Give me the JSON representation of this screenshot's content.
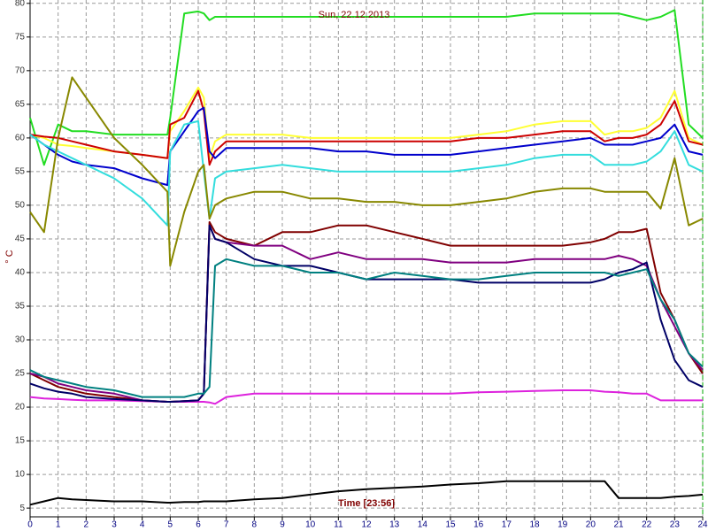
{
  "chart_data": {
    "type": "line",
    "title": "Sun, 22.12.2013",
    "ylabel": "° C",
    "annotation": "Time [23:56]",
    "grid": true,
    "xlim": [
      0,
      24
    ],
    "ylim": [
      3.7,
      80.5
    ],
    "xticks": [
      0,
      1,
      2,
      3,
      4,
      5,
      6,
      7,
      8,
      9,
      10,
      11,
      12,
      13,
      14,
      15,
      16,
      17,
      18,
      19,
      20,
      21,
      22,
      23,
      24
    ],
    "yticks": [
      5,
      10,
      15,
      20,
      25,
      30,
      35,
      40,
      45,
      50,
      55,
      60,
      65,
      70,
      75,
      80
    ],
    "x": [
      0,
      0.5,
      1,
      1.5,
      2,
      3,
      4,
      4.9,
      5,
      5.5,
      6,
      6.2,
      6.4,
      6.6,
      7,
      8,
      9,
      10,
      11,
      12,
      13,
      14,
      15,
      16,
      17,
      18,
      19,
      20,
      20.5,
      21,
      21.5,
      22,
      22.5,
      23,
      23.5,
      24
    ],
    "series": [
      {
        "color": "#22dd22",
        "values": [
          63,
          56,
          62,
          61,
          61,
          60.5,
          60.5,
          60.5,
          63,
          78.5,
          78.8,
          78.5,
          77.5,
          78,
          78,
          78,
          78,
          78,
          78,
          78,
          78,
          78,
          78,
          78,
          78,
          78.5,
          78.5,
          78.5,
          78.5,
          78.5,
          78,
          77.5,
          78,
          79,
          62,
          60
        ]
      },
      {
        "color": "#ffff33",
        "values": [
          60.5,
          60,
          59,
          58.8,
          58.5,
          58,
          57.5,
          57,
          61,
          64,
          67.5,
          66,
          57,
          59.5,
          60.5,
          60.5,
          60.5,
          60,
          60,
          60,
          60,
          60,
          60,
          60.5,
          61,
          62,
          62.5,
          62.5,
          60.5,
          61,
          61,
          61.5,
          63,
          67,
          60,
          59
        ]
      },
      {
        "color": "#cc0000",
        "values": [
          60.5,
          60.2,
          60,
          59.5,
          59,
          58,
          57.5,
          57,
          62,
          63,
          67,
          64,
          56,
          58,
          59.5,
          59.5,
          59.5,
          59.5,
          59.5,
          59.5,
          59.5,
          59.5,
          59.5,
          60,
          60,
          60.5,
          61,
          61,
          59.5,
          60,
          60,
          60.5,
          62,
          65.5,
          59.5,
          59
        ]
      },
      {
        "color": "#0000cc",
        "values": [
          60.5,
          59,
          57.5,
          56.5,
          56,
          55.5,
          54,
          53,
          58,
          61,
          64,
          64.5,
          58,
          57,
          58.5,
          58.5,
          58.5,
          58.5,
          58,
          58,
          57.5,
          57.5,
          57.5,
          58,
          58.5,
          59,
          59.5,
          60,
          59,
          59,
          59,
          59.5,
          60,
          62,
          58,
          57.5
        ]
      },
      {
        "color": "#33dddd",
        "values": [
          60.5,
          59,
          58,
          57,
          56,
          54,
          51,
          47,
          58,
          62,
          62.5,
          55,
          48,
          54,
          55,
          55.5,
          56,
          55.5,
          55,
          55,
          55,
          55,
          55,
          55.5,
          56,
          57,
          57.5,
          57.5,
          56,
          56,
          56,
          56.5,
          58,
          61,
          56,
          55
        ]
      },
      {
        "color": "#888800",
        "values": [
          49,
          46,
          60,
          69,
          66,
          60,
          56,
          52,
          41,
          49,
          55,
          56,
          48,
          50,
          51,
          52,
          52,
          51,
          51,
          50.5,
          50.5,
          50,
          50,
          50.5,
          51,
          52,
          52.5,
          52.5,
          52,
          52,
          52,
          52,
          49.5,
          57,
          47,
          48
        ]
      },
      {
        "color": "#dd22dd",
        "values": [
          21.5,
          21.3,
          21.2,
          21.1,
          21,
          21,
          20.9,
          20.8,
          20.8,
          20.8,
          20.8,
          20.8,
          20.7,
          20.5,
          21.5,
          22,
          22,
          22,
          22,
          22,
          22,
          22,
          22,
          22.2,
          22.3,
          22.4,
          22.5,
          22.5,
          22.3,
          22.2,
          22,
          22,
          21,
          21,
          21,
          21
        ]
      },
      {
        "color": "#000000",
        "values": [
          5.5,
          6,
          6.5,
          6.3,
          6.2,
          6,
          6,
          5.8,
          5.8,
          5.9,
          5.9,
          6,
          6,
          6,
          6,
          6.3,
          6.5,
          7,
          7.5,
          7.8,
          8,
          8.2,
          8.5,
          8.7,
          9,
          9,
          9,
          9,
          9,
          6.5,
          6.5,
          6.5,
          6.5,
          6.7,
          6.8,
          7
        ]
      },
      {
        "color": "#800000",
        "values": [
          25,
          24,
          23,
          22.5,
          22,
          21.5,
          21,
          20.8,
          20.8,
          20.9,
          21,
          22,
          47.5,
          46,
          45,
          44,
          46,
          46,
          47,
          47,
          46,
          45,
          44,
          44,
          44,
          44,
          44,
          44.5,
          45,
          46,
          46,
          46.5,
          37,
          33,
          28,
          25
        ]
      },
      {
        "color": "#800080",
        "values": [
          25,
          24.5,
          23.5,
          23,
          22.5,
          22,
          21,
          20.8,
          20.8,
          20.9,
          21,
          22,
          47,
          45,
          44.5,
          44,
          44,
          42,
          43,
          42,
          42,
          42,
          41.5,
          41.5,
          41.5,
          42,
          42,
          42,
          42,
          42.5,
          42,
          41,
          36,
          32,
          28,
          25.5
        ]
      },
      {
        "color": "#000066",
        "values": [
          23.5,
          22.8,
          22.3,
          22,
          21.5,
          21.2,
          21,
          20.8,
          20.8,
          20.9,
          21,
          22,
          47,
          45,
          44.5,
          42,
          41,
          41,
          40,
          39,
          39,
          39,
          39,
          38.5,
          38.5,
          38.5,
          38.5,
          38.5,
          39,
          40,
          40.5,
          41.5,
          33,
          27,
          24,
          23
        ]
      },
      {
        "color": "#008080",
        "values": [
          25.5,
          24.5,
          24,
          23.5,
          23,
          22.5,
          21.5,
          21.5,
          21.5,
          21.5,
          22,
          22,
          23,
          41,
          42,
          41,
          41,
          40,
          40,
          39,
          40,
          39.5,
          39,
          39,
          39.5,
          40,
          40,
          40,
          40,
          39.5,
          40,
          40.5,
          36,
          33,
          28,
          26
        ]
      }
    ]
  }
}
